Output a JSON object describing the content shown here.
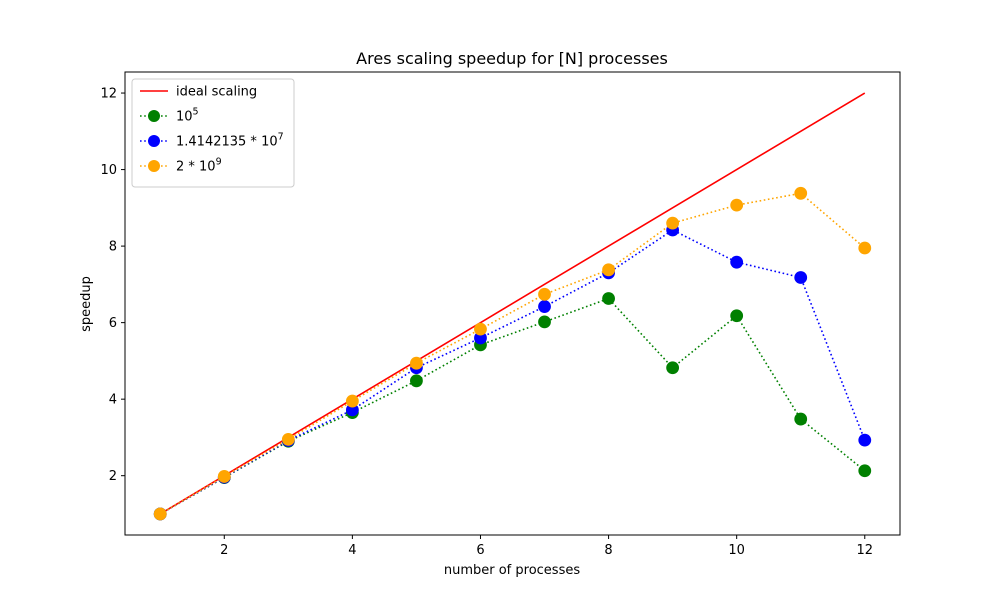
{
  "chart_data": {
    "type": "line",
    "title": "Ares scaling speedup for [N] processes",
    "xlabel": "number of processes",
    "ylabel": "speedup",
    "xlim": [
      0.45,
      12.55
    ],
    "ylim": [
      0.45,
      12.55
    ],
    "xticks": [
      2,
      4,
      6,
      8,
      10,
      12
    ],
    "yticks": [
      2,
      4,
      6,
      8,
      10,
      12
    ],
    "x": [
      1,
      2,
      3,
      4,
      5,
      6,
      7,
      8,
      9,
      10,
      11,
      12
    ],
    "grid": false,
    "legend_position": "upper-left",
    "series": [
      {
        "name": "ideal scaling",
        "color": "#ff0000",
        "style": "solid",
        "marker": "none",
        "values": [
          1,
          2,
          3,
          4,
          5,
          6,
          7,
          8,
          9,
          10,
          11,
          12
        ]
      },
      {
        "name": "10^5",
        "name_base": "10",
        "name_exp": "5",
        "color": "#008000",
        "style": "dotted",
        "marker": "circle",
        "values": [
          1.0,
          1.95,
          2.9,
          3.65,
          4.48,
          5.42,
          6.02,
          6.63,
          4.82,
          6.18,
          3.48,
          2.13
        ]
      },
      {
        "name": "1.4142135*10^7",
        "name_base": "1.4142135 * 10",
        "name_exp": "7",
        "color": "#0000ff",
        "style": "dotted",
        "marker": "circle",
        "values": [
          1.0,
          1.96,
          2.92,
          3.72,
          4.82,
          5.6,
          6.42,
          7.3,
          8.42,
          7.58,
          7.18,
          2.93
        ]
      },
      {
        "name": "2*10^9",
        "name_base": "2 * 10",
        "name_exp": "9",
        "color": "#ffa500",
        "style": "dotted",
        "marker": "circle",
        "values": [
          1.0,
          1.98,
          2.95,
          3.95,
          4.94,
          5.83,
          6.74,
          7.38,
          8.6,
          9.07,
          9.38,
          7.95
        ]
      }
    ]
  }
}
